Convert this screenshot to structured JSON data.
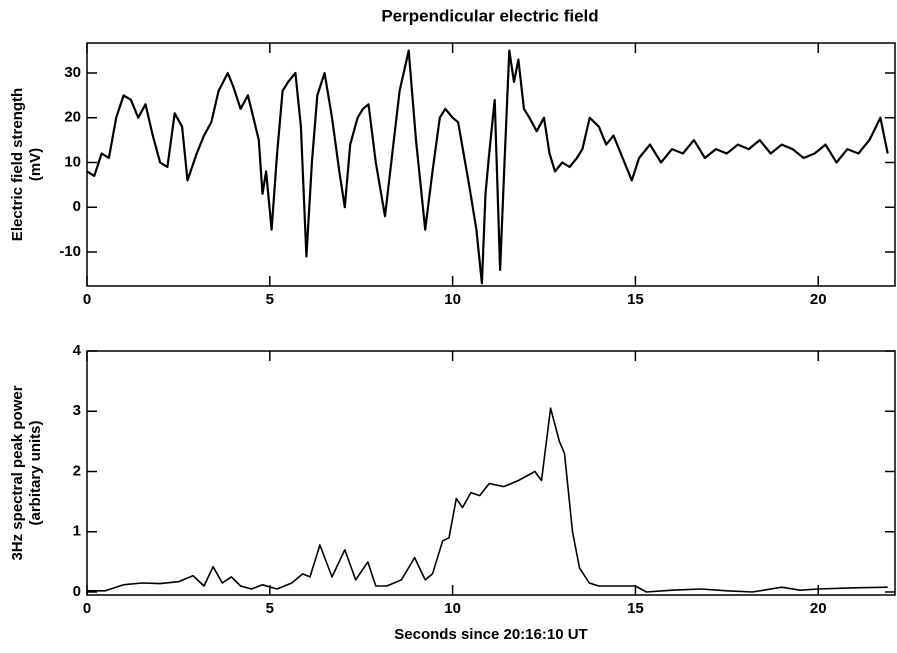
{
  "chart_data": [
    {
      "type": "line",
      "title": "Perpendicular electric field",
      "ylabel": [
        "Electric field strength",
        "(mV)"
      ],
      "xlim": [
        0,
        22.1
      ],
      "ylim": [
        -17.6,
        36.7
      ],
      "xticks": [
        0,
        5,
        10,
        15,
        20
      ],
      "yticks": [
        -10,
        0,
        10,
        20,
        30
      ],
      "color": "#000000",
      "x": [
        0,
        0.2,
        0.4,
        0.6,
        0.8,
        1.0,
        1.2,
        1.4,
        1.6,
        1.8,
        2.0,
        2.2,
        2.4,
        2.6,
        2.75,
        3.0,
        3.2,
        3.4,
        3.6,
        3.85,
        4.0,
        4.2,
        4.4,
        4.55,
        4.7,
        4.8,
        4.9,
        5.05,
        5.2,
        5.35,
        5.5,
        5.7,
        5.85,
        6.0,
        6.15,
        6.3,
        6.5,
        6.7,
        6.9,
        7.05,
        7.2,
        7.4,
        7.55,
        7.7,
        7.9,
        8.15,
        8.35,
        8.55,
        8.8,
        9.0,
        9.25,
        9.45,
        9.65,
        9.8,
        10.0,
        10.15,
        10.3,
        10.45,
        10.65,
        10.8,
        10.9,
        11.0,
        11.15,
        11.3,
        11.42,
        11.55,
        11.68,
        11.8,
        11.95,
        12.1,
        12.3,
        12.5,
        12.65,
        12.8,
        13.0,
        13.2,
        13.4,
        13.55,
        13.75,
        14.0,
        14.2,
        14.4,
        14.6,
        14.9,
        15.1,
        15.4,
        15.7,
        16.0,
        16.3,
        16.6,
        16.9,
        17.2,
        17.5,
        17.8,
        18.1,
        18.4,
        18.7,
        19.0,
        19.3,
        19.6,
        19.9,
        20.2,
        20.5,
        20.8,
        21.1,
        21.4,
        21.7,
        21.9
      ],
      "values": [
        8,
        7,
        12,
        11,
        20,
        25,
        24,
        20,
        23,
        16,
        10,
        9,
        21,
        18,
        6,
        12,
        16,
        19,
        26,
        30,
        27,
        22,
        25,
        20,
        15,
        3,
        8,
        -5,
        12,
        26,
        28,
        30,
        18,
        -11,
        10,
        25,
        30,
        20,
        8,
        0,
        14,
        20,
        22,
        23,
        10,
        -2,
        12,
        26,
        35,
        15,
        -5,
        8,
        20,
        22,
        20,
        19,
        12,
        5,
        -5,
        -17,
        3,
        12,
        24,
        -14,
        10,
        35,
        28,
        33,
        22,
        20,
        17,
        20,
        12,
        8,
        10,
        9,
        11,
        13,
        20,
        18,
        14,
        16,
        12,
        6,
        11,
        14,
        10,
        13,
        12,
        15,
        11,
        13,
        12,
        14,
        13,
        15,
        12,
        14,
        13,
        11,
        12,
        14,
        10,
        13,
        12,
        15,
        20,
        12
      ]
    },
    {
      "type": "line",
      "ylabel": [
        "3Hz spectral peak power",
        "(arbitary units)"
      ],
      "xlabel": "Seconds since 20:16:10 UT",
      "xlim": [
        0,
        22.1
      ],
      "ylim": [
        -0.05,
        4
      ],
      "xticks": [
        0,
        5,
        10,
        15,
        20
      ],
      "yticks": [
        0,
        1,
        2,
        3,
        4
      ],
      "color": "#000000",
      "x": [
        0,
        0.5,
        1.0,
        1.5,
        2.0,
        2.5,
        2.9,
        3.2,
        3.45,
        3.7,
        3.95,
        4.2,
        4.5,
        4.8,
        5.2,
        5.6,
        5.9,
        6.1,
        6.37,
        6.7,
        7.05,
        7.35,
        7.68,
        7.9,
        8.2,
        8.6,
        8.96,
        9.25,
        9.45,
        9.73,
        9.9,
        10.1,
        10.27,
        10.5,
        10.74,
        11.0,
        11.4,
        11.8,
        12.25,
        12.43,
        12.68,
        12.92,
        13.06,
        13.28,
        13.47,
        13.74,
        14.0,
        14.5,
        15.0,
        15.3,
        16.0,
        16.8,
        17.5,
        18.2,
        19.0,
        19.5,
        20.0,
        21.0,
        21.9
      ],
      "values": [
        0.02,
        0.02,
        0.12,
        0.15,
        0.14,
        0.17,
        0.27,
        0.1,
        0.42,
        0.15,
        0.25,
        0.1,
        0.05,
        0.12,
        0.05,
        0.15,
        0.3,
        0.25,
        0.78,
        0.25,
        0.7,
        0.2,
        0.5,
        0.1,
        0.1,
        0.2,
        0.57,
        0.2,
        0.3,
        0.85,
        0.9,
        1.55,
        1.4,
        1.65,
        1.6,
        1.8,
        1.75,
        1.85,
        2.0,
        1.85,
        3.05,
        2.5,
        2.3,
        1.0,
        0.4,
        0.15,
        0.1,
        0.1,
        0.1,
        0.0,
        0.03,
        0.05,
        0.02,
        0.0,
        0.08,
        0.03,
        0.05,
        0.07,
        0.08
      ]
    }
  ]
}
